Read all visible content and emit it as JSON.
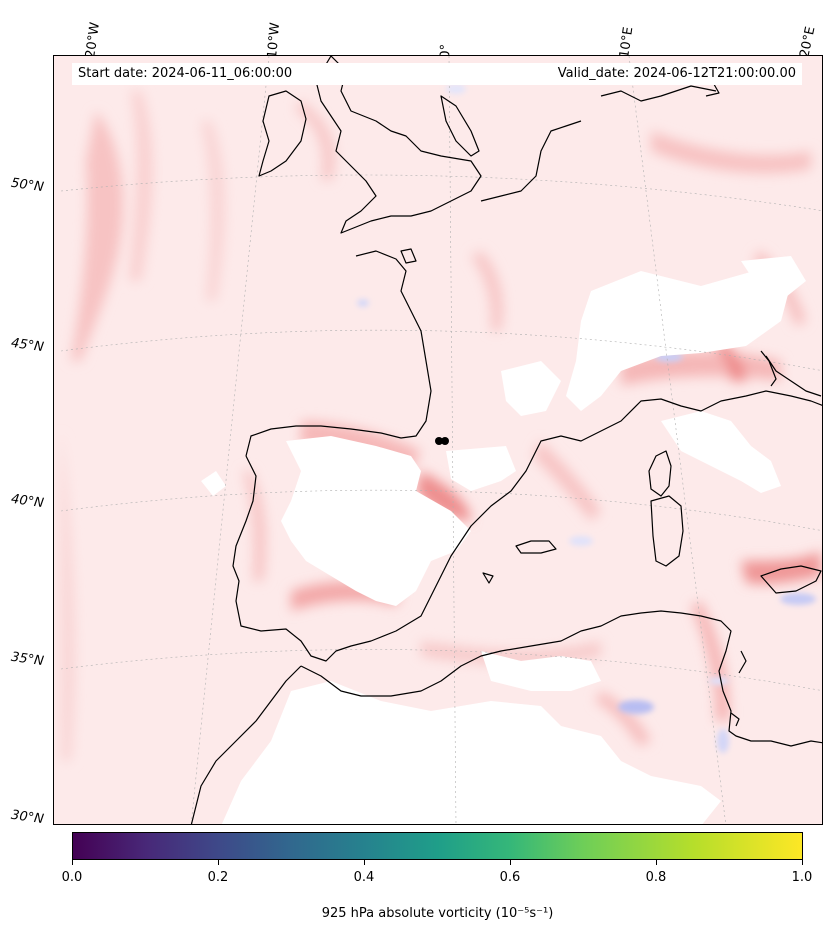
{
  "header": {
    "start_date": "Start date: 2024-06-11_06:00:00",
    "valid_date": "Valid_date: 2024-06-12T21:00:00.00"
  },
  "map": {
    "longitude_labels": [
      "20°W",
      "10°W",
      "0°",
      "10°E",
      "20°E"
    ],
    "latitude_labels": [
      "50°N",
      "45°N",
      "40°N",
      "35°N",
      "30°N"
    ],
    "field": "925 hPa absolute vorticity",
    "colors": {
      "positive_light": "#fde8e8",
      "positive_mid": "#f9c4c4",
      "positive_strong": "#f08080",
      "negative_light": "#e6e8fb",
      "negative_mid": "#b8bdf2",
      "coastline": "#000000"
    }
  },
  "colorbar": {
    "colormap": "viridis",
    "ticks": [
      "0.0",
      "0.2",
      "0.4",
      "0.6",
      "0.8",
      "1.0"
    ],
    "title": "925 hPa absolute vorticity (10⁻⁵s⁻¹)"
  }
}
